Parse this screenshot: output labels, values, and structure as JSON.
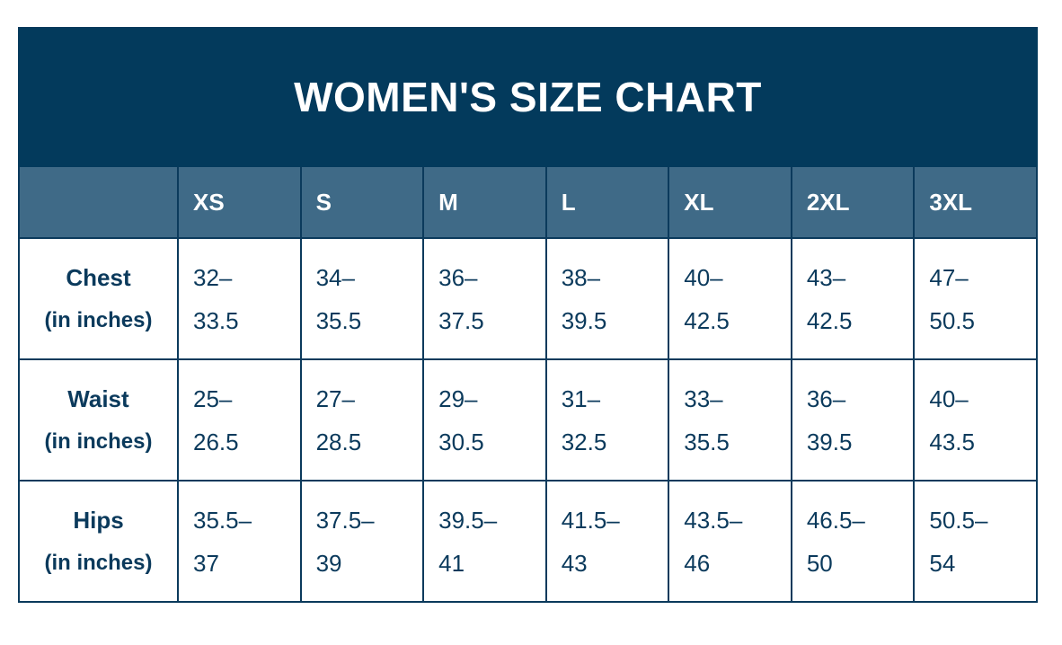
{
  "title": "WOMEN'S SIZE CHART",
  "columns": [
    "XS",
    "S",
    "M",
    "L",
    "XL",
    "2XL",
    "3XL"
  ],
  "rows": [
    {
      "name": "Chest",
      "unit": "(in inches)",
      "cells": [
        "32–33.5",
        "34–35.5",
        "36–37.5",
        "38–39.5",
        "40–42.5",
        "43–42.5",
        "47–50.5"
      ]
    },
    {
      "name": "Waist",
      "unit": "(in inches)",
      "cells": [
        "25–26.5",
        "27–28.5",
        "29–30.5",
        "31–32.5",
        "33–35.5",
        "36–39.5",
        "40–43.5"
      ]
    },
    {
      "name": "Hips",
      "unit": "(in inches)",
      "cells": [
        "35.5–37",
        "37.5–39",
        "39.5–41",
        "41.5–43",
        "43.5–46",
        "46.5–50",
        "50.5–54"
      ]
    }
  ]
}
